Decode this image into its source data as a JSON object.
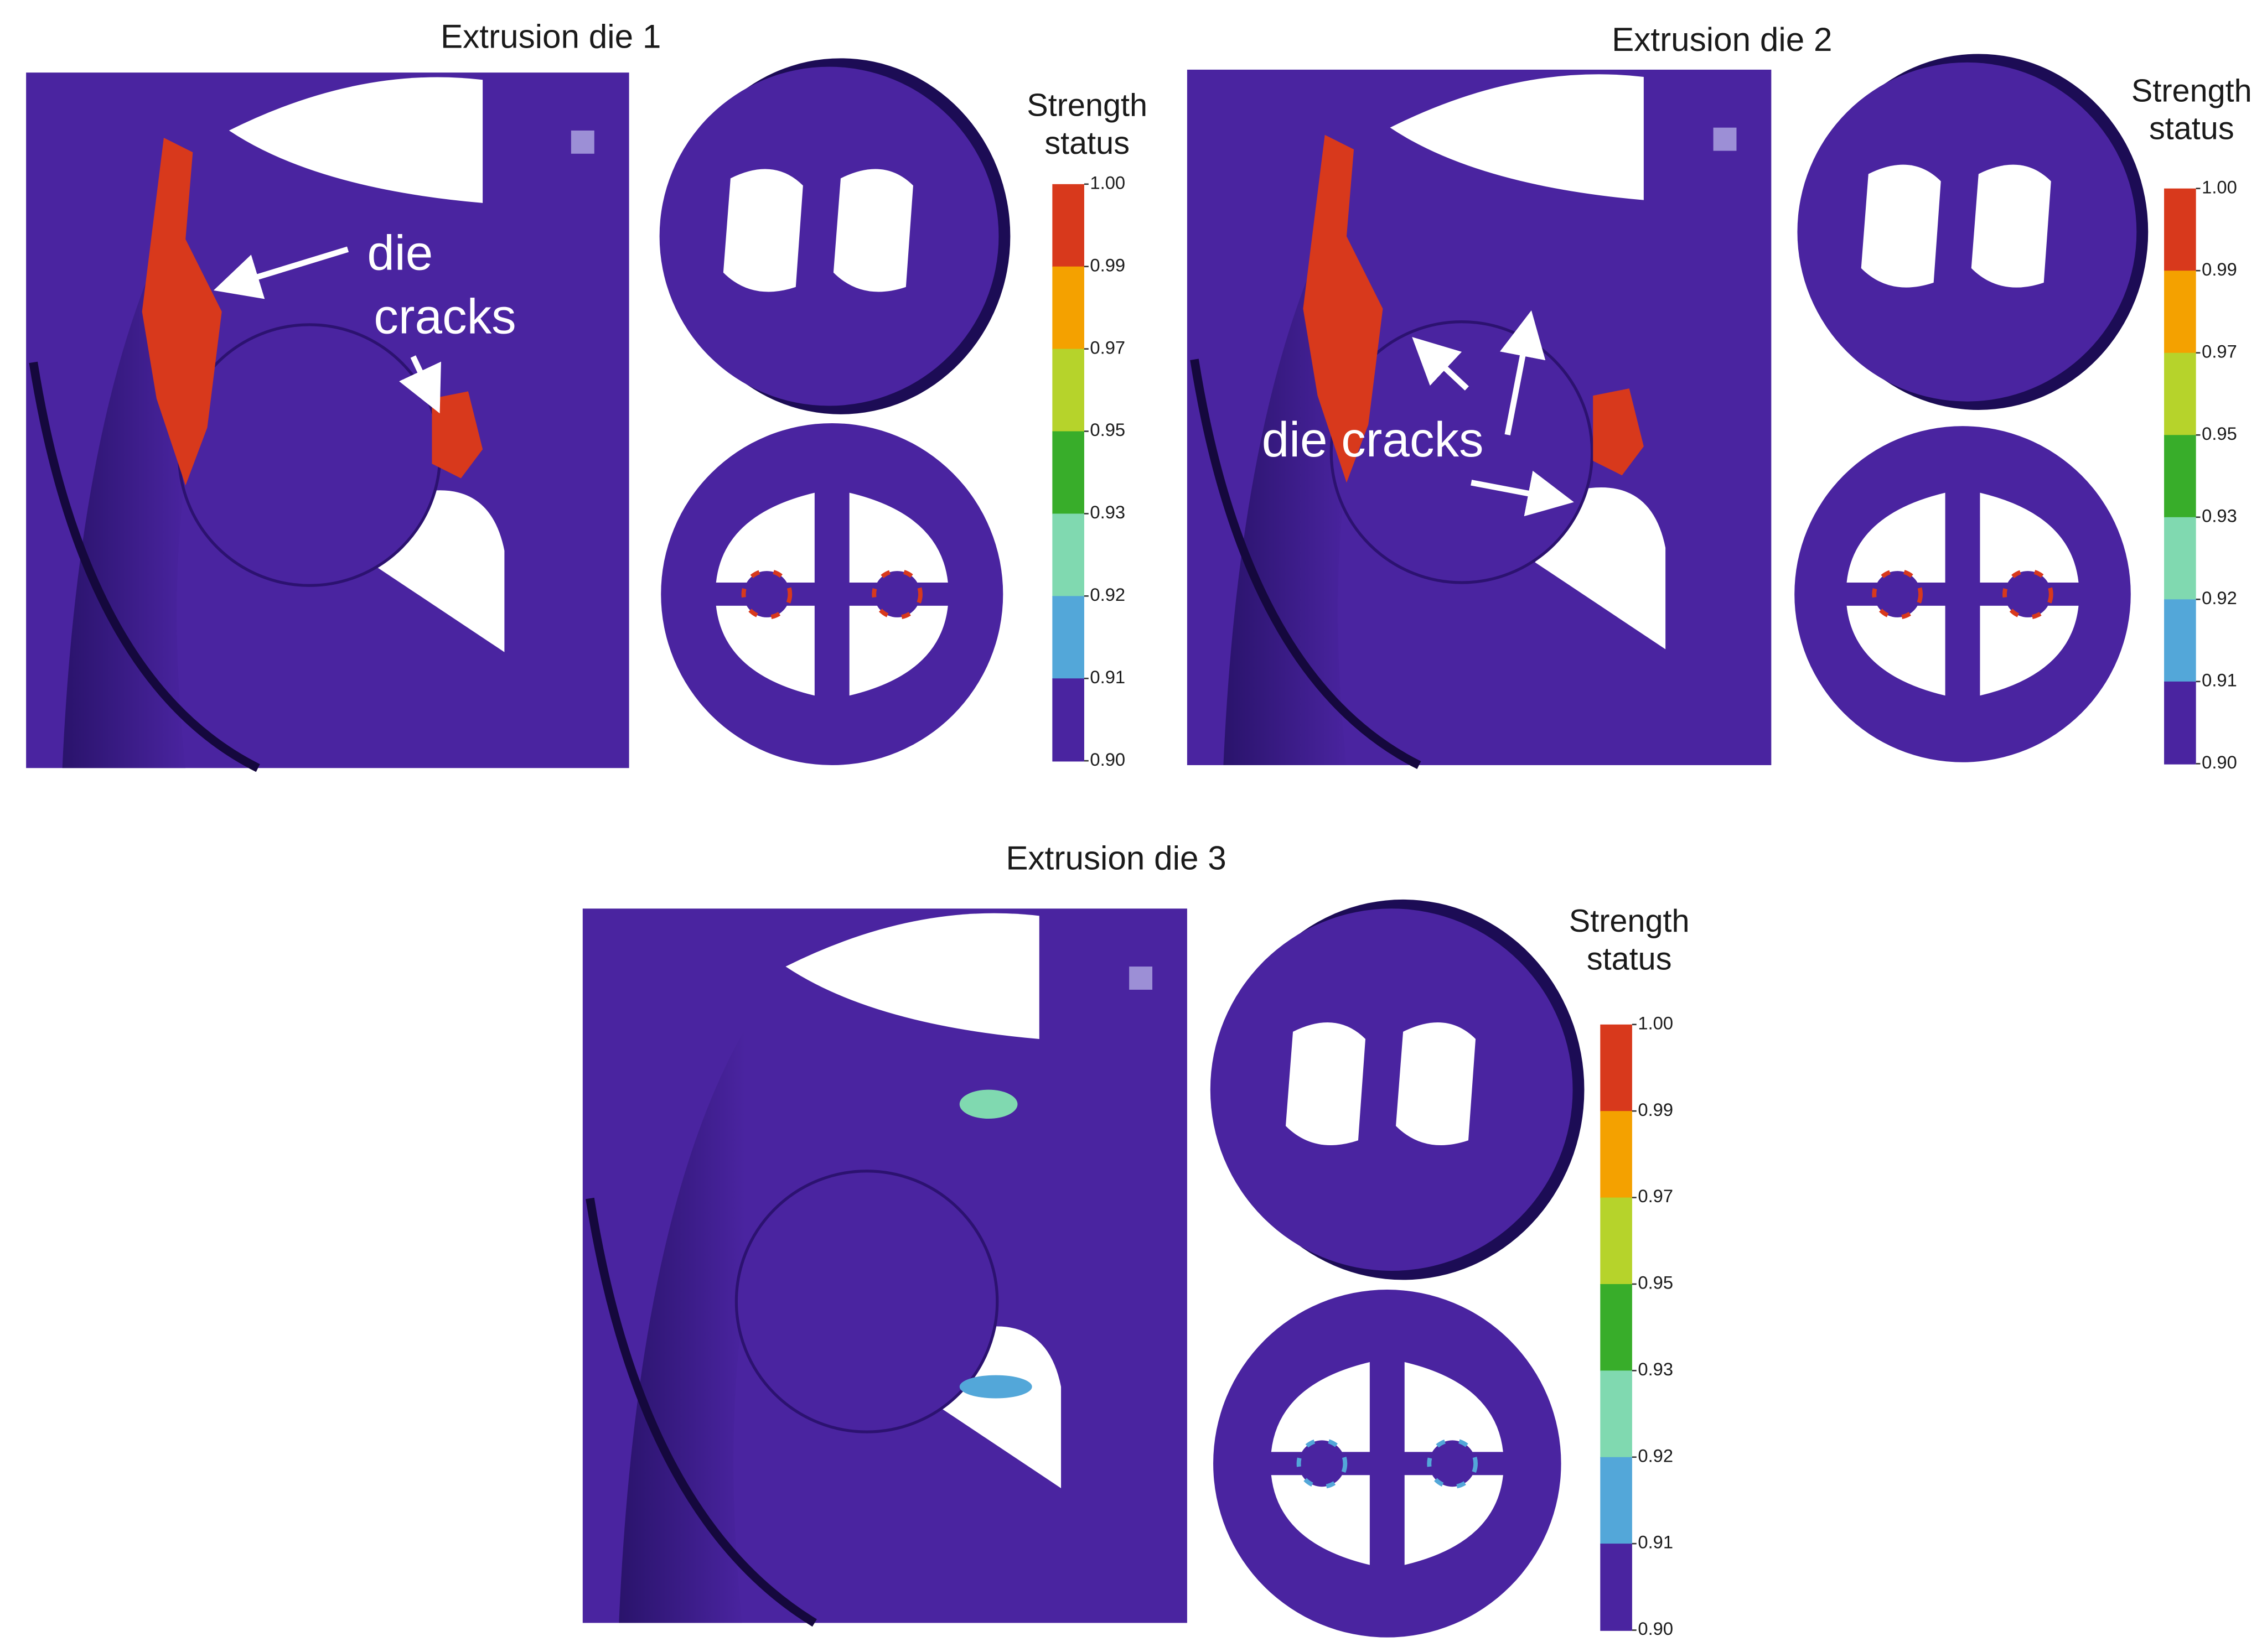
{
  "panels": [
    {
      "title": "Extrusion die 1",
      "annotation": [
        "die",
        "cracks"
      ],
      "legend": {
        "title": [
          "Strength",
          "status"
        ],
        "ticks": [
          "1.00",
          "0.99",
          "0.97",
          "0.95",
          "0.93",
          "0.92",
          "0.91",
          "0.90"
        ],
        "colors": [
          "#d8391c",
          "#f4a100",
          "#b6d32b",
          "#38ad2a",
          "#80d9b0",
          "#53a7d9",
          "#4a24a0"
        ]
      }
    },
    {
      "title": "Extrusion die 2",
      "annotation": [
        "die cracks"
      ],
      "legend": {
        "title": [
          "Strength",
          "status"
        ],
        "ticks": [
          "1.00",
          "0.99",
          "0.97",
          "0.95",
          "0.93",
          "0.92",
          "0.91",
          "0.90"
        ],
        "colors": [
          "#d8391c",
          "#f4a100",
          "#b6d32b",
          "#38ad2a",
          "#80d9b0",
          "#53a7d9",
          "#4a24a0"
        ]
      }
    },
    {
      "title": "Extrusion die 3",
      "legend": {
        "title": [
          "Strength",
          "status"
        ],
        "ticks": [
          "1.00",
          "0.99",
          "0.97",
          "0.95",
          "0.93",
          "0.92",
          "0.91",
          "0.90"
        ],
        "colors": [
          "#d8391c",
          "#f4a100",
          "#b6d32b",
          "#38ad2a",
          "#80d9b0",
          "#53a7d9",
          "#4a24a0"
        ]
      }
    }
  ]
}
